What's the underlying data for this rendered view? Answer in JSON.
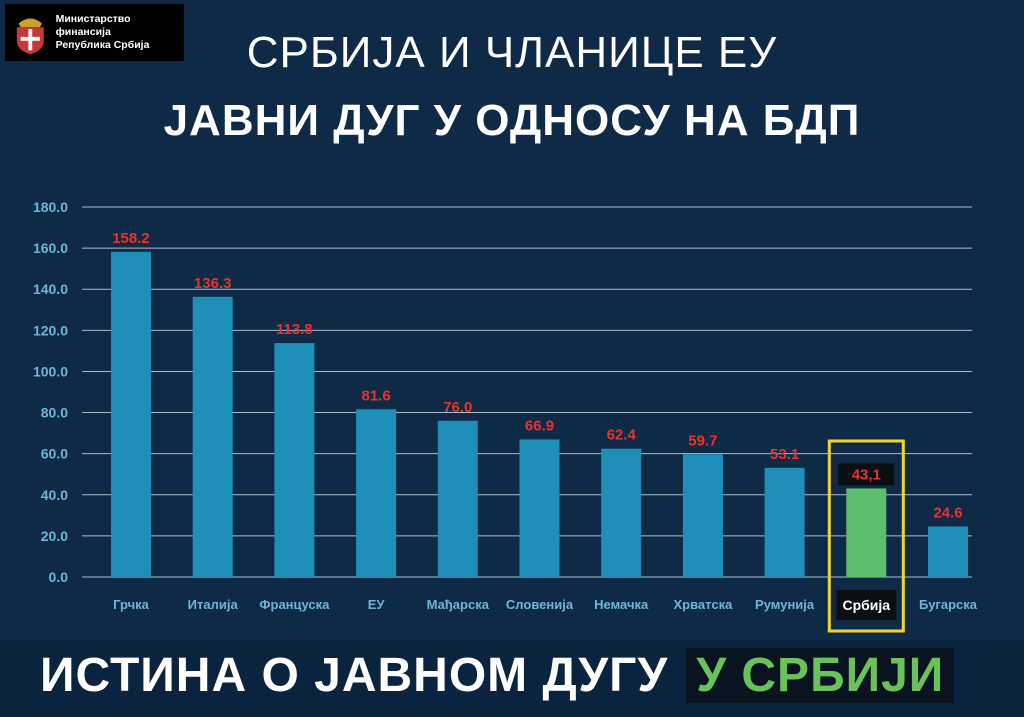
{
  "logo": {
    "line1": "Министарство финансија",
    "line2": "Република Србија"
  },
  "title_line1": "СРБИЈА И ЧЛАНИЦЕ ЕУ",
  "title_line2": "ЈАВНИ ДУГ У ОДНОСУ НА БДП",
  "footer": {
    "text": "ИСТИНА О ЈАВНОМ ДУГУ",
    "highlight": "У СРБИЈИ"
  },
  "colors": {
    "background": "#0e2a47",
    "bar": "#1e8fb8",
    "highlight_bar": "#5cbf6e",
    "value_label": "#e5352c",
    "highlight_frame": "#f2d22e",
    "axis_text": "#6fb6d6"
  },
  "chart_data": {
    "type": "bar",
    "title": "ЈАВНИ ДУГ У ОДНОСУ НА БДП",
    "categories": [
      "Грчка",
      "Италија",
      "Француска",
      "ЕУ",
      "Мађарска",
      "Словенија",
      "Немачка",
      "Хрватска",
      "Румунија",
      "Србија",
      "Бугарска"
    ],
    "values": [
      158.2,
      136.3,
      113.8,
      81.6,
      76.0,
      66.9,
      62.4,
      59.7,
      53.1,
      43.1,
      24.6
    ],
    "value_labels": [
      "158.2",
      "136.3",
      "113.8",
      "81.6",
      "76.0",
      "66.9",
      "62.4",
      "59.7",
      "53.1",
      "43,1",
      "24.6"
    ],
    "highlight_index": 9,
    "y_ticks": [
      "0.0",
      "20.0",
      "40.0",
      "60.0",
      "80.0",
      "100.0",
      "120.0",
      "140.0",
      "160.0",
      "180.0"
    ],
    "ylim": [
      0,
      180
    ],
    "grid": true,
    "legend": "none"
  }
}
